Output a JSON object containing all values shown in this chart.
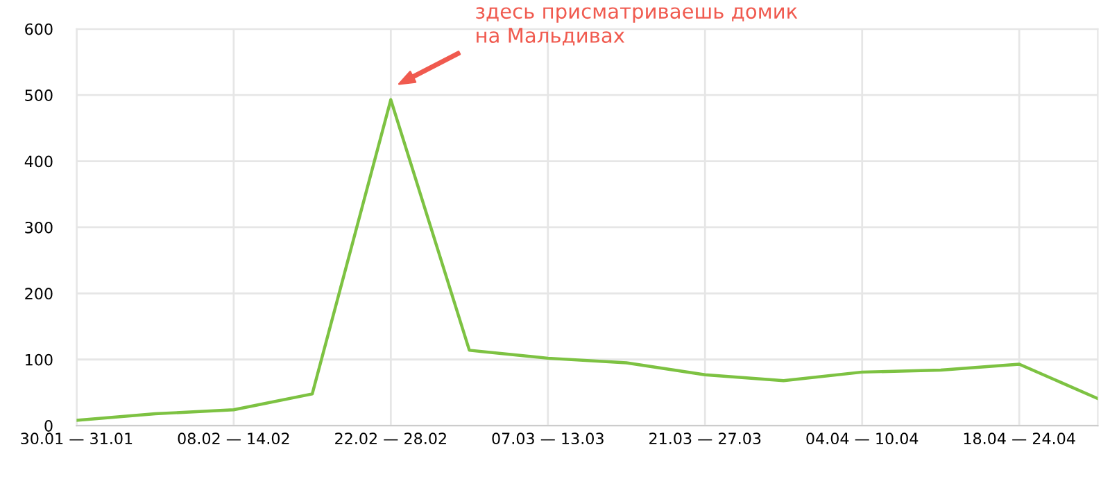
{
  "chart_data": {
    "type": "line",
    "categories": [
      "30.01 — 31.01",
      null,
      "08.02 — 14.02",
      null,
      "22.02 — 28.02",
      null,
      "07.03 — 13.03",
      null,
      "21.03 — 27.03",
      null,
      "04.04 — 10.04",
      null,
      "18.04 — 24.04",
      null
    ],
    "series": [
      {
        "color": "#7dc242",
        "values": [
          8,
          18,
          24,
          48,
          493,
          114,
          102,
          95,
          77,
          68,
          81,
          84,
          93,
          41
        ]
      }
    ],
    "ylim": [
      0,
      600
    ],
    "yticks": [
      0,
      100,
      200,
      300,
      400,
      500,
      600
    ],
    "grid": true,
    "marker": "none",
    "line_style": "solid",
    "annotations": [
      "здесь присматриваешь домик\nна Мальдивах"
    ]
  }
}
